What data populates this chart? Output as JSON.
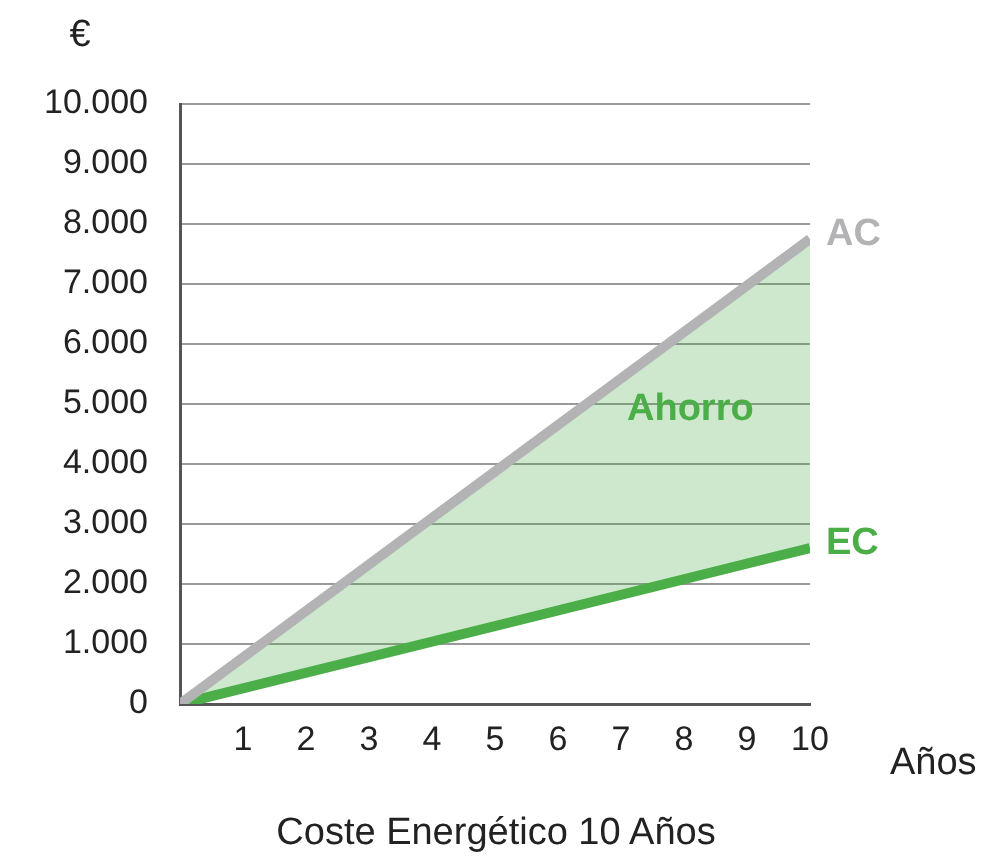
{
  "chart_data": {
    "type": "line",
    "title": "Coste Energético 10 Años",
    "xlabel": "Años",
    "ylabel": "€",
    "xlim": [
      0,
      10
    ],
    "xticks": [
      {
        "value": 0,
        "label": null
      },
      1,
      2,
      3,
      4,
      5,
      6,
      7,
      8,
      9,
      10
    ],
    "ylim": [
      0,
      10000
    ],
    "yticks": [
      {
        "value": 0,
        "label": "0"
      },
      {
        "value": 1000,
        "label": "1.000"
      },
      {
        "value": 2000,
        "label": "2.000"
      },
      {
        "value": 3000,
        "label": "3.000"
      },
      {
        "value": 4000,
        "label": "4.000"
      },
      {
        "value": 5000,
        "label": "5.000"
      },
      {
        "value": 6000,
        "label": "6.000"
      },
      {
        "value": 7000,
        "label": "7.000"
      },
      {
        "value": 8000,
        "label": "8.000"
      },
      {
        "value": 9000,
        "label": "9.000"
      },
      {
        "value": 10000,
        "label": "10.000"
      }
    ],
    "grid": "y",
    "legend": false,
    "marker": "none",
    "line_style": "solid",
    "series": [
      {
        "name": "AC",
        "color": "#b3b3b5",
        "values": [
          0,
          7750
        ]
      },
      {
        "name": "EC",
        "color": "#4cae48",
        "values": [
          0,
          2600
        ],
        "lower": [
          0,
          2600
        ],
        "upper": [
          0,
          7750
        ]
      }
    ],
    "x": [
      0,
      10
    ],
    "annotations": [
      "Ahorro"
    ]
  }
}
